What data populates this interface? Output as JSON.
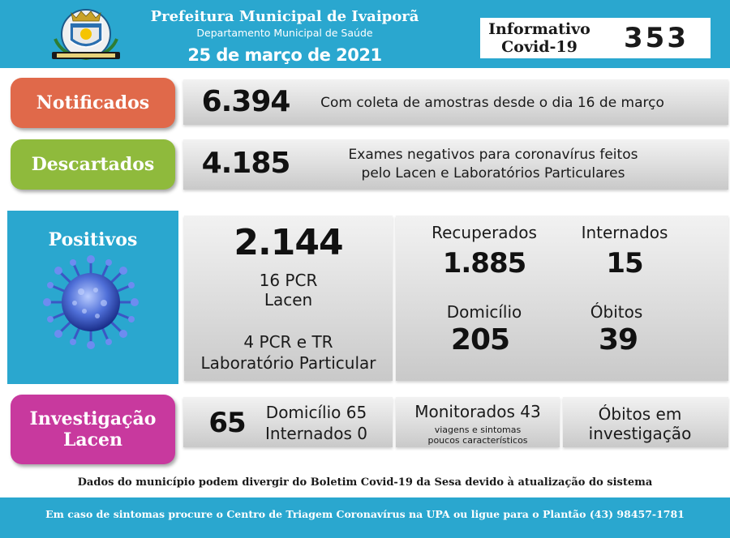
{
  "header": {
    "title": "Prefeitura Municipal de Ivaiporã",
    "department": "Departamento Municipal de Saúde",
    "date": "25 de março de 2021",
    "bulletin_label_line1": "Informativo",
    "bulletin_label_line2": "Covid-19",
    "bulletin_number": "353",
    "seal_icon": "municipal-coat-of-arms-icon"
  },
  "notificados": {
    "label": "Notificados",
    "value": "6.394",
    "description": "Com coleta de amostras desde o dia 16 de março",
    "color": "#e0694a"
  },
  "descartados": {
    "label": "Descartados",
    "value": "4.185",
    "description_line1": "Exames negativos para coronavírus feitos",
    "description_line2": "pelo Lacen e Laboratórios Particulares",
    "color": "#8fba3c"
  },
  "positivos": {
    "label": "Positivos",
    "total": "2.144",
    "lacen_line1": "16 PCR",
    "lacen_line2": "Lacen",
    "particular_line1": "4 PCR e TR",
    "particular_line2": "Laboratório Particular",
    "virus_icon": "coronavirus-icon",
    "color": "#2aa7cf",
    "recuperados_label": "Recuperados",
    "recuperados_value": "1.885",
    "internados_label": "Internados",
    "internados_value": "15",
    "domicilio_label": "Domicílio",
    "domicilio_value": "205",
    "obitos_label": "Óbitos",
    "obitos_value": "39"
  },
  "investigacao": {
    "label_line1": "Investigação",
    "label_line2": "Lacen",
    "value": "65",
    "domicilio": "Domicílio 65",
    "internados": "Internados 0",
    "monitorados": "Monitorados 43",
    "monitorados_note_line1": "viagens e sintomas",
    "monitorados_note_line2": "poucos característicos",
    "obitos_line1": "Óbitos em",
    "obitos_line2": "investigação",
    "color": "#c8399e"
  },
  "disclaimer": "Dados do município podem divergir do Boletim Covid-19 da Sesa devido à atualização do sistema",
  "footer": "Em caso de sintomas procure o Centro de Triagem Coronavírus na UPA ou ligue para o Plantão (43) 98457-1781"
}
